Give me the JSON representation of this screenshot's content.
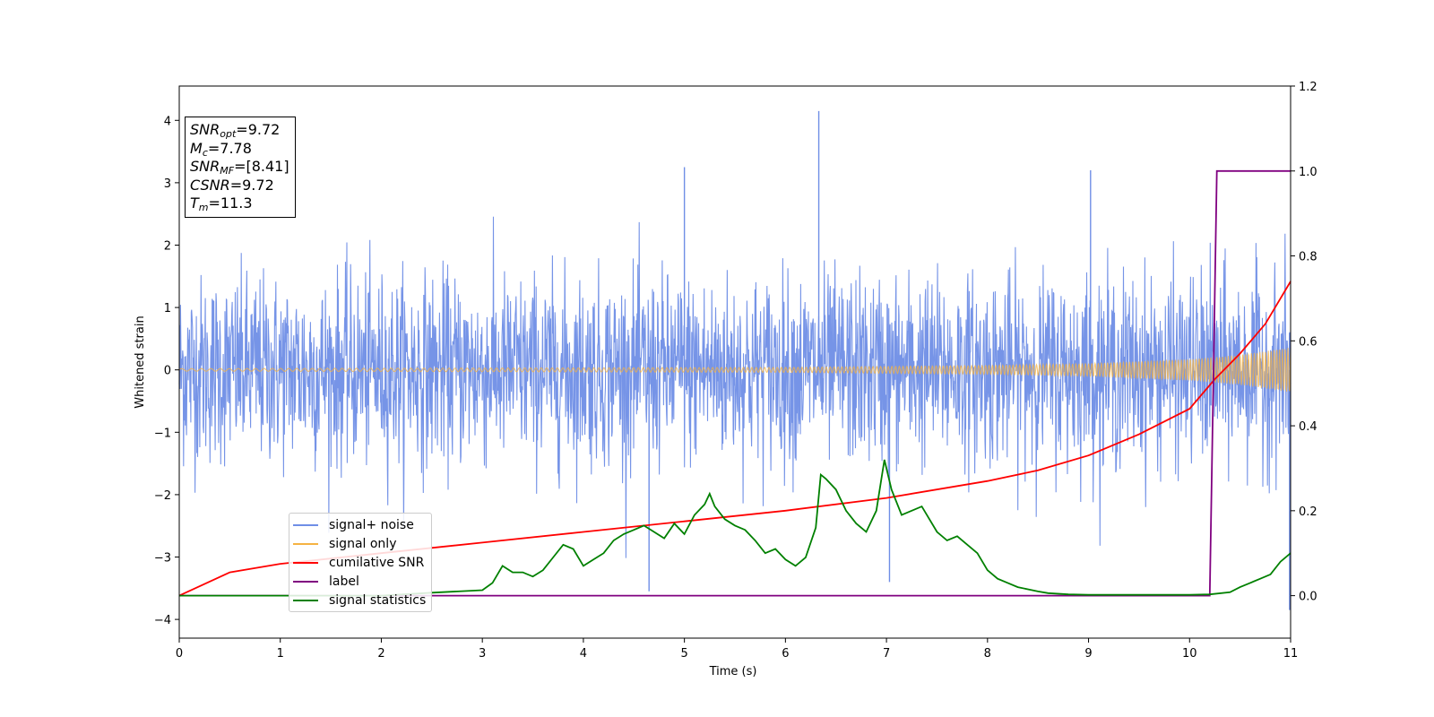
{
  "chart_data": {
    "type": "line",
    "xlabel": "Time (s)",
    "ylabel": "Whitened strain",
    "xlim": [
      0,
      11
    ],
    "ylim_left": [
      -4.3,
      4.55
    ],
    "ylim_right": [
      -0.1,
      1.2
    ],
    "x_ticks": [
      "0",
      "1",
      "2",
      "3",
      "4",
      "5",
      "6",
      "7",
      "8",
      "9",
      "10",
      "11"
    ],
    "y_ticks_left": [
      "4",
      "3",
      "2",
      "1",
      "0",
      "−1",
      "−2",
      "−3",
      "−4"
    ],
    "y_ticks_right": [
      "1.2",
      "1.0",
      "0.8",
      "0.6",
      "0.4",
      "0.2",
      "0.0"
    ],
    "annotation": {
      "snr_opt_label": "SNR",
      "snr_opt_sub": "opt",
      "snr_opt_value": "=9.72",
      "mc_label": "M",
      "mc_sub": "c",
      "mc_value": "=7.78",
      "snr_mf_label": "SNR",
      "snr_mf_sub": "MF",
      "snr_mf_value": "=[8.41]",
      "csnr_label": "CSNR",
      "csnr_value": "=9.72",
      "tm_label": "T",
      "tm_sub": "m",
      "tm_value": "=11.3"
    },
    "legend_placement": "lower-left",
    "series": [
      {
        "name": "signal+ noise",
        "color": "#6f8ee6",
        "axis": "left",
        "description_values": {
          "noise_std": 0.75,
          "peak_max": 4.15,
          "peak_min": -3.55
        }
      },
      {
        "name": "signal only",
        "color": "#f5b342",
        "axis": "left",
        "envelope": {
          "x": [
            0,
            3,
            6,
            8,
            9,
            10,
            10.5,
            11
          ],
          "amp": [
            0.02,
            0.03,
            0.04,
            0.07,
            0.1,
            0.17,
            0.24,
            0.36
          ]
        }
      },
      {
        "name": "cumilative SNR",
        "color": "#ff0000",
        "axis": "right",
        "x": [
          0,
          0.5,
          1,
          2,
          3,
          4,
          5,
          6,
          7,
          8,
          8.5,
          9,
          9.5,
          10,
          10.25,
          10.5,
          10.75,
          11
        ],
        "y": [
          0.0,
          0.055,
          0.075,
          0.1,
          0.125,
          0.15,
          0.175,
          0.2,
          0.23,
          0.27,
          0.295,
          0.33,
          0.38,
          0.44,
          0.51,
          0.57,
          0.64,
          0.74
        ]
      },
      {
        "name": "label",
        "color": "#800080",
        "axis": "right",
        "x": [
          0,
          10.2,
          10.27,
          11
        ],
        "y": [
          0,
          0,
          1,
          1
        ]
      },
      {
        "name": "signal statistics",
        "color": "#008000",
        "axis": "right",
        "x": [
          0,
          2,
          2.5,
          3,
          3.1,
          3.2,
          3.3,
          3.4,
          3.5,
          3.6,
          3.7,
          3.8,
          3.9,
          4.0,
          4.1,
          4.2,
          4.3,
          4.4,
          4.5,
          4.6,
          4.7,
          4.8,
          4.9,
          5.0,
          5.1,
          5.2,
          5.25,
          5.3,
          5.4,
          5.5,
          5.6,
          5.7,
          5.8,
          5.9,
          6.0,
          6.1,
          6.2,
          6.3,
          6.35,
          6.4,
          6.5,
          6.6,
          6.7,
          6.8,
          6.9,
          6.98,
          7.05,
          7.15,
          7.25,
          7.35,
          7.5,
          7.6,
          7.7,
          7.8,
          7.9,
          8.0,
          8.1,
          8.2,
          8.3,
          8.4,
          8.5,
          8.6,
          8.8,
          9.0,
          9.5,
          10.0,
          10.2,
          10.4,
          10.5,
          10.6,
          10.7,
          10.8,
          10.9,
          11.0
        ],
        "y": [
          0,
          0,
          0.007,
          0.013,
          0.03,
          0.07,
          0.055,
          0.055,
          0.045,
          0.06,
          0.09,
          0.12,
          0.11,
          0.07,
          0.085,
          0.1,
          0.13,
          0.145,
          0.155,
          0.165,
          0.15,
          0.135,
          0.17,
          0.145,
          0.19,
          0.215,
          0.24,
          0.21,
          0.18,
          0.165,
          0.155,
          0.13,
          0.1,
          0.11,
          0.085,
          0.07,
          0.09,
          0.16,
          0.285,
          0.275,
          0.25,
          0.2,
          0.17,
          0.15,
          0.2,
          0.32,
          0.25,
          0.19,
          0.2,
          0.21,
          0.15,
          0.13,
          0.14,
          0.12,
          0.1,
          0.06,
          0.04,
          0.03,
          0.02,
          0.015,
          0.01,
          0.006,
          0.003,
          0.002,
          0.002,
          0.002,
          0.003,
          0.008,
          0.02,
          0.03,
          0.04,
          0.05,
          0.08,
          0.1
        ]
      }
    ]
  }
}
